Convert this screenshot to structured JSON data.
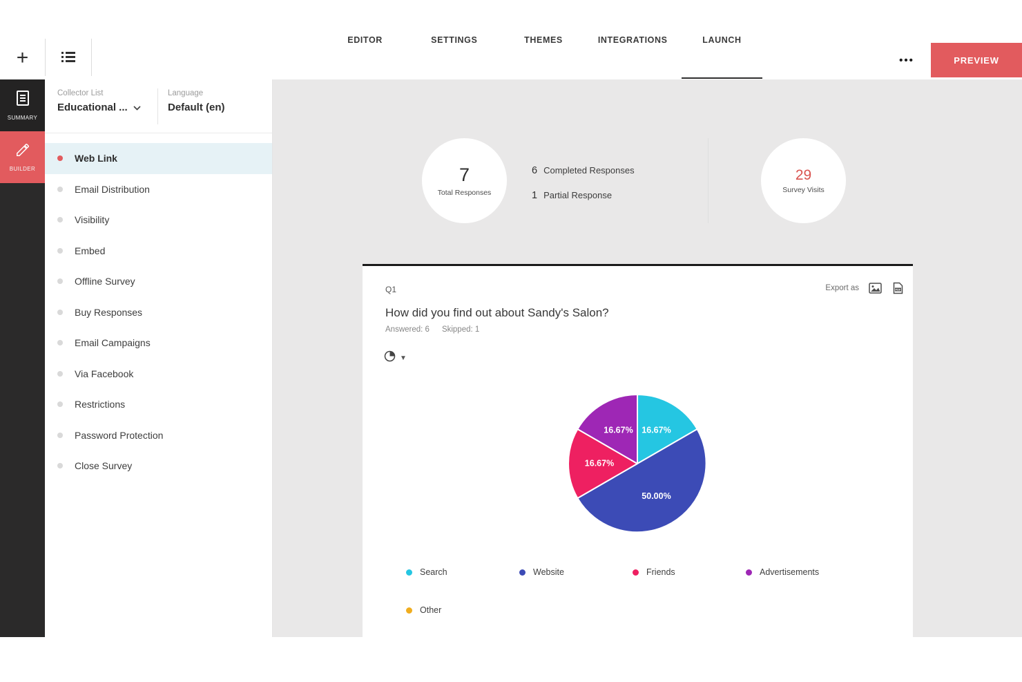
{
  "header": {
    "tabs": [
      "EDITOR",
      "SETTINGS",
      "THEMES",
      "INTEGRATIONS",
      "LAUNCH"
    ],
    "active_tab": "LAUNCH",
    "preview_label": "PREVIEW",
    "more_label": "•••",
    "plus_label": "+"
  },
  "rail": {
    "summary_label": "SUMMARY",
    "builder_label": "BUILDER"
  },
  "sidebar": {
    "collector_list_label": "Collector List",
    "collector_list_value": "Educational ...",
    "language_label": "Language",
    "language_value": "Default (en)",
    "items": [
      {
        "label": "Web Link",
        "active": true
      },
      {
        "label": "Email Distribution",
        "active": false
      },
      {
        "label": "Visibility",
        "active": false
      },
      {
        "label": "Embed",
        "active": false
      },
      {
        "label": "Offline Survey",
        "active": false
      },
      {
        "label": "Buy Responses",
        "active": false
      },
      {
        "label": "Email Campaigns",
        "active": false
      },
      {
        "label": "Via Facebook",
        "active": false
      },
      {
        "label": "Restrictions",
        "active": false
      },
      {
        "label": "Password Protection",
        "active": false
      },
      {
        "label": "Close Survey",
        "active": false
      }
    ]
  },
  "stats": {
    "total_value": "7",
    "total_label": "Total Responses",
    "completed_value": "6",
    "completed_label": "Completed Responses",
    "partial_value": "1",
    "partial_label": "Partial Response",
    "visits_value": "29",
    "visits_label": "Survey Visits"
  },
  "question": {
    "number": "Q1",
    "export_label": "Export as",
    "title": "How did you find out about Sandy's Salon?",
    "answered": "Answered: 6",
    "skipped": "Skipped: 1"
  },
  "colors": {
    "accent": "#e25b5e",
    "visits_number": "#d9534f",
    "active_row_bg": "#e6f2f6"
  },
  "chart_data": {
    "type": "pie",
    "title": "How did you find out about Sandy's Salon?",
    "categories": [
      "Search",
      "Website",
      "Friends",
      "Advertisements",
      "Other"
    ],
    "values": [
      16.67,
      50.0,
      16.67,
      16.67,
      0
    ],
    "slice_labels": [
      "16.67%",
      "50.00%",
      "16.67%",
      "16.67%",
      ""
    ],
    "colors": [
      "#25c6e2",
      "#3c4bb6",
      "#ee2061",
      "#9e27b5",
      "#f0ad1f"
    ],
    "answered": 6,
    "skipped": 1,
    "legend_position": "bottom",
    "start_angle_deg": 0,
    "direction": "clockwise"
  }
}
